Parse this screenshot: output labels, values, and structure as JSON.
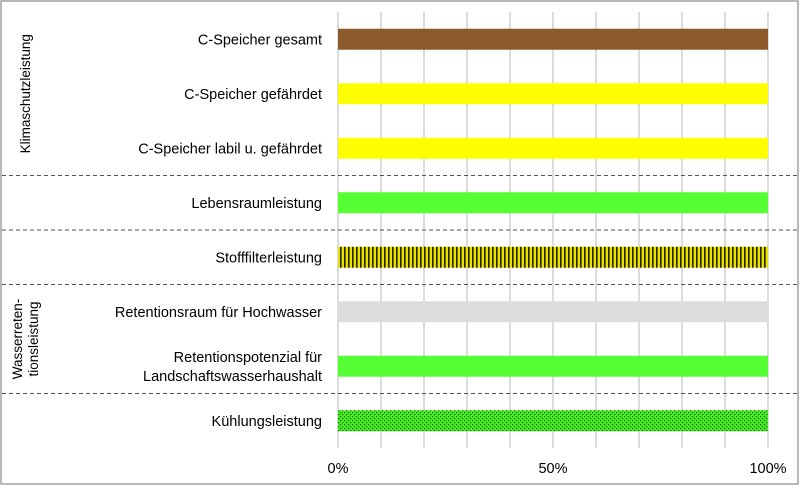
{
  "chart_data": {
    "type": "bar",
    "orientation": "horizontal",
    "stacked": false,
    "categories": [
      "C-Speicher gesamt",
      "C-Speicher gefährdet",
      "C-Speicher labil u. gefährdet",
      "Lebensraumleistung",
      "Stofffilterleistung",
      "Retentionsraum für Hochwasser",
      [
        "Retentionspotenzial für",
        "Landschaftswasserhaushalt"
      ],
      "Kühlungsleistung"
    ],
    "values": [
      100,
      100,
      100,
      100,
      100,
      100,
      100,
      100
    ],
    "bar_colors": [
      "#8c5a2b",
      "#ffff00",
      "#ffff00",
      "#55ff33",
      "#e8e000",
      "#dcdcdc",
      "#55ff33",
      "#44ee22"
    ],
    "bar_patterns": [
      "solid",
      "solid",
      "solid",
      "solid",
      "vertical-stripes",
      "solid",
      "solid",
      "dots"
    ],
    "x_ticks": [
      "0%",
      "50%",
      "100%"
    ],
    "xlim": [
      0,
      100
    ],
    "grid": "vertical",
    "groups": [
      {
        "label": "Klimaschutzleistung",
        "start": 0,
        "end": 2
      },
      {
        "label": "Stofffilterleistung-separator",
        "start": 3,
        "end": 3,
        "hidden": true
      },
      {
        "label": "Stofffilterleistung-separator2",
        "start": 4,
        "end": 4,
        "hidden": true
      },
      {
        "label": [
          "Wasserreten-",
          "tionsleistung"
        ],
        "start": 5,
        "end": 6
      },
      {
        "label": "Kühlungsleistung-separator",
        "start": 7,
        "end": 7,
        "hidden": true
      }
    ],
    "separators_after": [
      2,
      3,
      4,
      6
    ],
    "group_labels": [
      {
        "lines": [
          "Klimaschutzleistung"
        ],
        "start": 0,
        "end": 2
      },
      {
        "lines": [
          "Wasserreten-",
          "tionsleistung"
        ],
        "start": 5,
        "end": 6
      }
    ],
    "legend": "none"
  }
}
